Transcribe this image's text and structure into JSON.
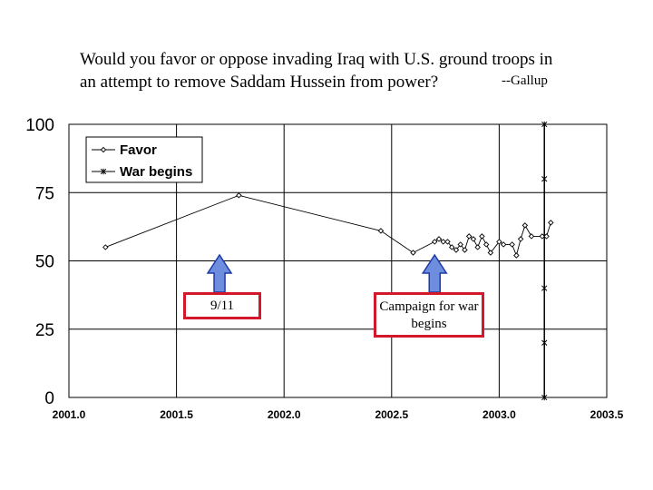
{
  "title_line1": "Would you favor or oppose invading Iraq with U.S. ground troops in",
  "title_line2": "an attempt to remove Saddam Hussein from power?",
  "source": "--Gallup",
  "annotations": [
    {
      "text": "9/11",
      "x": 2001.7
    },
    {
      "text": "Campaign for war begins",
      "x": 2002.7
    }
  ],
  "chart_data": {
    "type": "line",
    "title": "Would you favor or oppose invading Iraq with U.S. ground troops in an attempt to remove Saddam Hussein from power?",
    "xlim": [
      2001.0,
      2003.5
    ],
    "ylim": [
      0,
      100
    ],
    "x_ticks": [
      "2001.0",
      "2001.5",
      "2002.0",
      "2002.5",
      "2003.0",
      "2003.5"
    ],
    "y_ticks": [
      "0",
      "25",
      "50",
      "75",
      "100"
    ],
    "grid": true,
    "legend_position": "top-left",
    "series": [
      {
        "name": "Favor",
        "marker": "diamond",
        "color": "#000000",
        "points": [
          [
            2001.17,
            55
          ],
          [
            2001.79,
            74
          ],
          [
            2002.45,
            61
          ],
          [
            2002.6,
            53
          ],
          [
            2002.7,
            57
          ],
          [
            2002.72,
            58
          ],
          [
            2002.74,
            57
          ],
          [
            2002.76,
            57
          ],
          [
            2002.78,
            55
          ],
          [
            2002.8,
            54
          ],
          [
            2002.82,
            56
          ],
          [
            2002.84,
            54
          ],
          [
            2002.86,
            59
          ],
          [
            2002.88,
            58
          ],
          [
            2002.9,
            55
          ],
          [
            2002.92,
            59
          ],
          [
            2002.94,
            56
          ],
          [
            2002.96,
            53
          ],
          [
            2003.0,
            57
          ],
          [
            2003.02,
            56
          ],
          [
            2003.06,
            56
          ],
          [
            2003.08,
            52
          ],
          [
            2003.1,
            58
          ],
          [
            2003.12,
            63
          ],
          [
            2003.15,
            59
          ],
          [
            2003.2,
            59
          ],
          [
            2003.22,
            59
          ],
          [
            2003.24,
            64
          ]
        ]
      },
      {
        "name": "War begins",
        "marker": "star",
        "color": "#000000",
        "points": [
          [
            2003.21,
            0
          ],
          [
            2003.21,
            20
          ],
          [
            2003.21,
            40
          ],
          [
            2003.21,
            80
          ],
          [
            2003.21,
            100
          ]
        ]
      }
    ]
  }
}
